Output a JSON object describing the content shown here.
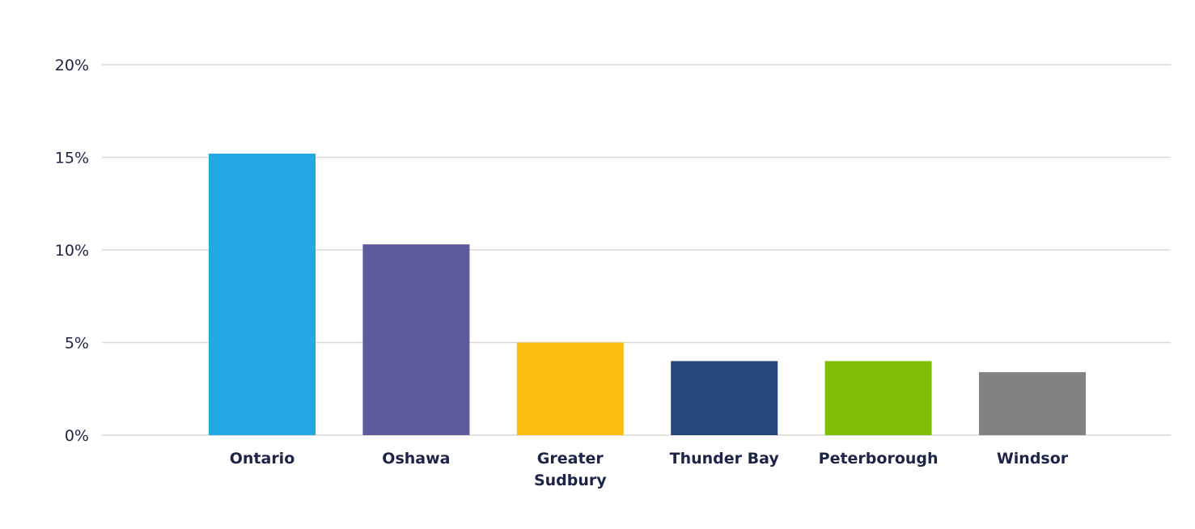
{
  "chart_data": {
    "type": "bar",
    "categories": [
      "Ontario",
      "Oshawa",
      "Greater Sudbury",
      "Thunder Bay",
      "Peterborough",
      "Windsor"
    ],
    "category_lines": [
      [
        "Ontario"
      ],
      [
        "Oshawa"
      ],
      [
        "Greater",
        "Sudbury"
      ],
      [
        "Thunder Bay"
      ],
      [
        "Peterborough"
      ],
      [
        "Windsor"
      ]
    ],
    "values": [
      15.2,
      10.3,
      5.0,
      4.0,
      4.0,
      3.4
    ],
    "colors": [
      "#23a9e1",
      "#5e5a9e",
      "#fbbf14",
      "#25487b",
      "#80bd06",
      "#828285"
    ],
    "title": "",
    "xlabel": "",
    "ylabel": "",
    "ylim": [
      0,
      20
    ],
    "yticks": [
      0,
      5,
      10,
      15,
      20
    ],
    "ytick_labels": [
      "0%",
      "5%",
      "10%",
      "15%",
      "20%"
    ],
    "grid": true,
    "legend": "none"
  }
}
